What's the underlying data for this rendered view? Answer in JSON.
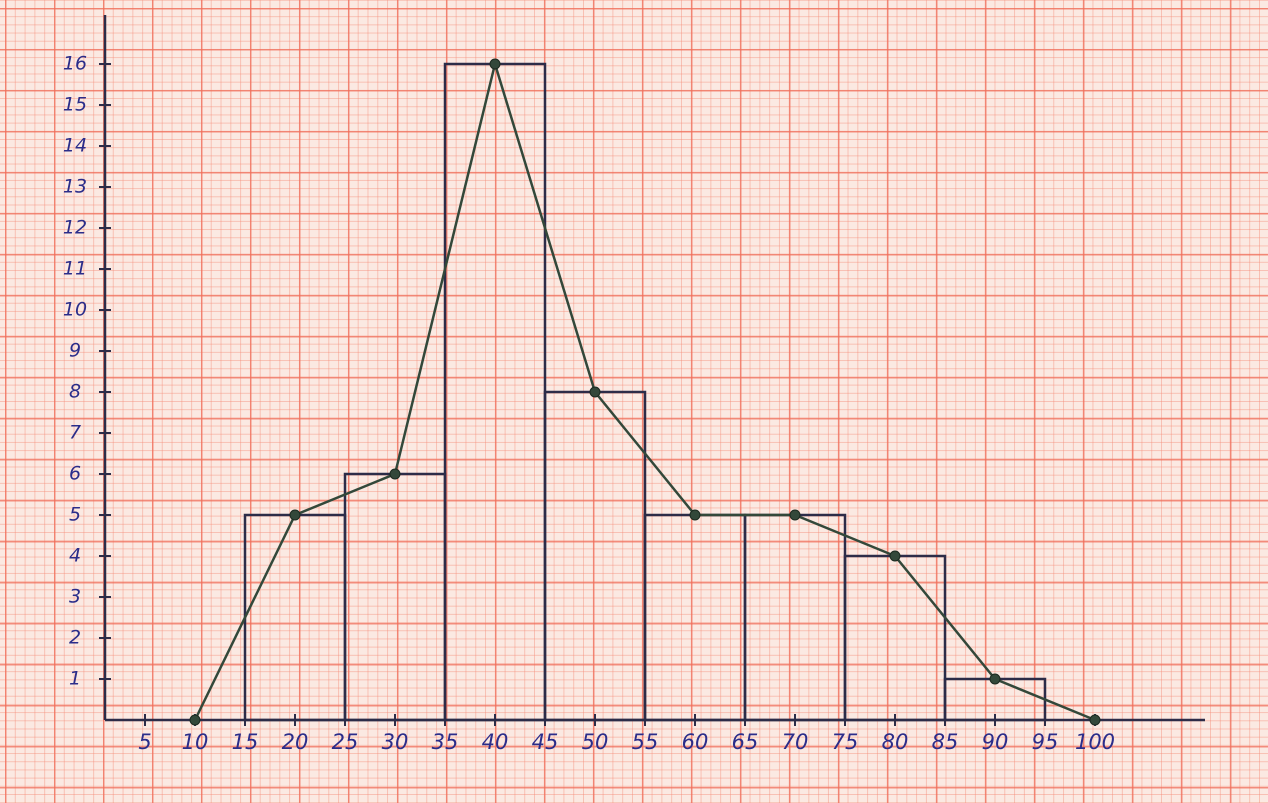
{
  "chart_data": {
    "type": "histogram",
    "bins": [
      15,
      25,
      35,
      45,
      55,
      65,
      75,
      85,
      95
    ],
    "values": [
      5,
      6,
      16,
      8,
      5,
      5,
      4,
      1
    ],
    "color": "#2c2c48",
    "frequency_polygon": {
      "type": "line",
      "color": "#33483a",
      "x": [
        10,
        20,
        30,
        40,
        50,
        60,
        70,
        80,
        90,
        100
      ],
      "values": [
        0,
        5,
        6,
        16,
        8,
        5,
        5,
        4,
        1,
        0
      ]
    },
    "xlim": [
      1,
      111
    ],
    "ylim": [
      0,
      17
    ],
    "xticks": [
      5,
      10,
      15,
      20,
      25,
      30,
      35,
      40,
      45,
      50,
      55,
      60,
      65,
      70,
      75,
      80,
      85,
      90,
      95,
      100
    ],
    "yticks": [
      1,
      2,
      3,
      4,
      5,
      6,
      7,
      8,
      9,
      10,
      11,
      12,
      13,
      14,
      15,
      16
    ]
  }
}
